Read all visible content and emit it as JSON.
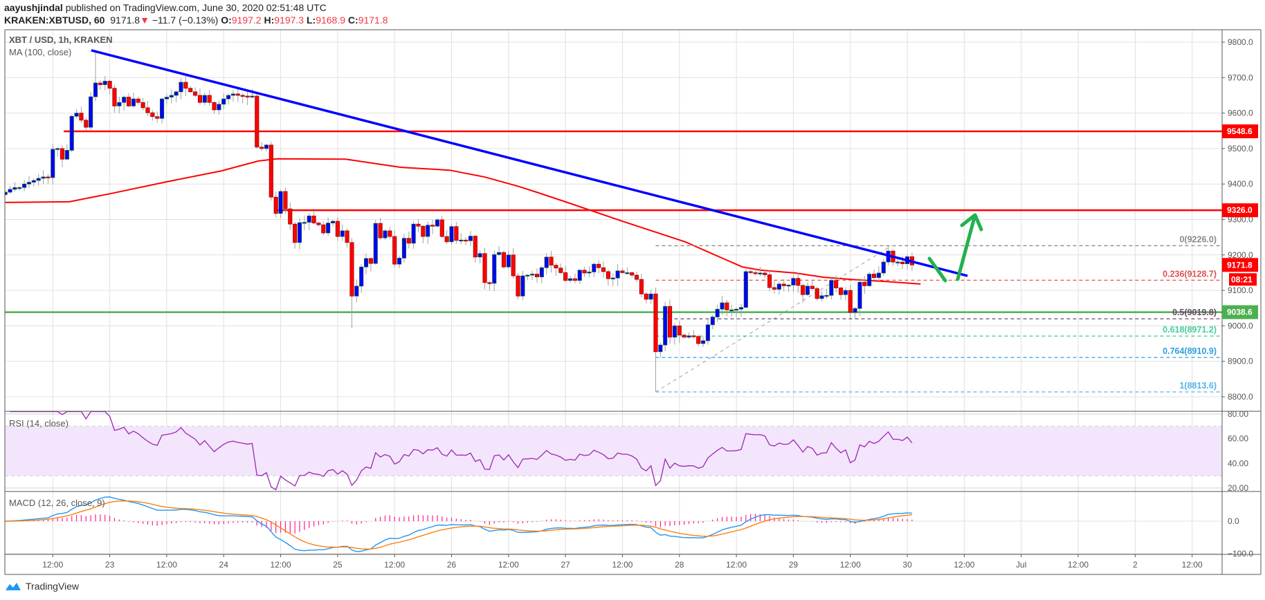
{
  "header": {
    "author": "aayushjindal",
    "published": "published on TradingView.com, June 30, 2020 02:51:48 UTC",
    "symbol": "KRAKEN:XBTUSD, 60",
    "last": "9171.8",
    "change": "−11.7 (−0.13%)",
    "o_label": "O:",
    "o": "9197.2",
    "h_label": "H:",
    "h": "9197.3",
    "l_label": "L:",
    "l": "9168.9",
    "c_label": "C:",
    "c": "9171.8",
    "down_icon": "triangle-down-icon"
  },
  "legend": {
    "title": "XBT / USD, 1h, KRAKEN",
    "ma": "MA (100, close)",
    "rsi": "RSI (14, close)",
    "macd": "MACD (12, 26, close, 9)"
  },
  "footer": {
    "brand": "TradingView"
  },
  "colors": {
    "up": "#0000ff",
    "down": "#ff0000",
    "ma": "#ff0000",
    "trendline": "#0000ff",
    "support": "#4caf50",
    "resistance": "#ff0000",
    "rsi": "#9c27b0",
    "macd": "#2196f3",
    "signal": "#ff7f0e",
    "hist": "#ff1e8c",
    "arrow": "#22b14c"
  },
  "chart_data": {
    "type": "candlestick",
    "title": "XBT / USD, 1h, KRAKEN",
    "x_unit": "hours from Jun 23 00:00",
    "first_hour": -22,
    "closes": [
      9377,
      9385,
      9390,
      9390,
      9400,
      9405,
      9410,
      9416,
      9420,
      9418,
      9498,
      9500,
      9470,
      9495,
      9591,
      9600,
      9580,
      9560,
      9646,
      9685,
      9680,
      9690,
      9670,
      9620,
      9630,
      9645,
      9620,
      9640,
      9630,
      9615,
      9601,
      9590,
      9585,
      9640,
      9645,
      9650,
      9660,
      9687,
      9670,
      9660,
      9650,
      9630,
      9650,
      9630,
      9609,
      9625,
      9640,
      9650,
      9654,
      9650,
      9648,
      9645,
      9648,
      9504,
      9500,
      9510,
      9363,
      9317,
      9379,
      9330,
      9287,
      9235,
      9291,
      9292,
      9310,
      9290,
      9285,
      9262,
      9290,
      9295,
      9252,
      9268,
      9235,
      9084,
      9112,
      9166,
      9190,
      9176,
      9289,
      9248,
      9268,
      9252,
      9174,
      9191,
      9247,
      9233,
      9287,
      9281,
      9252,
      9284,
      9281,
      9299,
      9252,
      9237,
      9280,
      9241,
      9242,
      9240,
      9253,
      9194,
      9204,
      9122,
      9120,
      9201,
      9207,
      9166,
      9200,
      9141,
      9084,
      9141,
      9143,
      9146,
      9138,
      9164,
      9194,
      9171,
      9163,
      9150,
      9128,
      9133,
      9128,
      9157,
      9149,
      9152,
      9174,
      9164,
      9153,
      9133,
      9135,
      9155,
      9150,
      9150,
      9143,
      9131,
      9090,
      9075,
      9090,
      8927,
      8946,
      9055,
      8968,
      9000,
      8974,
      8968,
      8972,
      8970,
      8950,
      8958,
      9003,
      9025,
      9047,
      9065,
      9045,
      9045,
      9047,
      9052,
      9153,
      9150,
      9148,
      9149,
      9144,
      9108,
      9103,
      9118,
      9113,
      9115,
      9134,
      9114,
      9088,
      9112,
      9105,
      9077,
      9085,
      9086,
      9128,
      9107,
      9088,
      9100,
      9038,
      9049,
      9123,
      9113,
      9146,
      9136,
      9149,
      9180,
      9211,
      9180,
      9180,
      9175,
      9195,
      9171.8
    ],
    "first_open": 9370,
    "wick_overrides": [
      {
        "hour": -3,
        "high": 9777
      },
      {
        "hour": 51,
        "low": 8993
      },
      {
        "hour": 115,
        "low": 8813.6
      },
      {
        "hour": 164,
        "high": 9226
      }
    ],
    "ma100_keypoints": [
      [
        -22,
        9348
      ],
      [
        -8.5,
        9350
      ],
      [
        0.2,
        9373
      ],
      [
        11.9,
        9406
      ],
      [
        23.5,
        9437
      ],
      [
        31.3,
        9465
      ],
      [
        35.2,
        9471
      ],
      [
        49.7,
        9470
      ],
      [
        56.3,
        9457
      ],
      [
        61.4,
        9447
      ],
      [
        71.6,
        9439
      ],
      [
        78.9,
        9420
      ],
      [
        86.2,
        9393
      ],
      [
        89.9,
        9377
      ],
      [
        96.4,
        9348
      ],
      [
        108,
        9295
      ],
      [
        121.2,
        9237
      ],
      [
        128.5,
        9194
      ],
      [
        133.3,
        9166
      ],
      [
        137.2,
        9157
      ],
      [
        144.5,
        9149
      ],
      [
        150.4,
        9137
      ],
      [
        156.2,
        9131
      ],
      [
        163.5,
        9125
      ],
      [
        170.8,
        9118
      ]
    ],
    "trendline": [
      [
        -3.9,
        9777
      ],
      [
        180.7,
        9141
      ]
    ],
    "horizontal_lines": [
      {
        "name": "resistance-9548",
        "price": 9548.6,
        "from_hour": -9.7,
        "label": "9548.6",
        "color": "#ff0000"
      },
      {
        "name": "resistance-9326",
        "price": 9326.0,
        "from_hour": 35.2,
        "label": "9326.0",
        "color": "#ff0000"
      },
      {
        "name": "support-9038",
        "price": 9038.6,
        "from_hour": -23,
        "label": "9038.6",
        "color": "#4caf50"
      }
    ],
    "last_price": {
      "label": "9171.8",
      "price": 9171.8,
      "countdown": "08:21"
    },
    "fib": {
      "from": [
        115,
        8813.6
      ],
      "to": [
        164.7,
        9226.0
      ],
      "levels": [
        {
          "label": "0(9226.0)",
          "price": 9226.0,
          "color": "#8a8a8a"
        },
        {
          "label": "0.236(9128.7)",
          "price": 9128.7,
          "color": "#e05050"
        },
        {
          "label": "0.5(9019.8)",
          "price": 9019.8,
          "color": "#6d4468"
        },
        {
          "label": "0.618(8971.2)",
          "price": 8971.2,
          "color": "#45cf9a"
        },
        {
          "label": "0.764(8910.9)",
          "price": 8910.9,
          "color": "#2f9ee0"
        },
        {
          "label": "1(8813.6)",
          "price": 8813.6,
          "color": "#56b2e8"
        }
      ]
    },
    "price_ticks": [
      "9800.0",
      "9700.0",
      "9600.0",
      "9500.0",
      "9400.0",
      "9300.0",
      "9200.0",
      "9100.0",
      "9000.0",
      "8900.0",
      "8800.0"
    ],
    "price_range": [
      8800,
      9800
    ],
    "rsi_ticks": [
      "80.00",
      "60.00",
      "40.00",
      "20.00"
    ],
    "rsi_band": [
      30,
      70
    ],
    "macd_ticks": [
      "0.0",
      "−100.0"
    ],
    "time_ticks_start_hour": -12,
    "time_ticks_step_hours": 12,
    "time_ticks": [
      "12:00",
      "23",
      "12:00",
      "24",
      "12:00",
      "25",
      "12:00",
      "26",
      "12:00",
      "27",
      "12:00",
      "28",
      "12:00",
      "29",
      "12:00",
      "30",
      "12:00",
      "Jul",
      "12:00",
      "2",
      "12:00"
    ]
  }
}
